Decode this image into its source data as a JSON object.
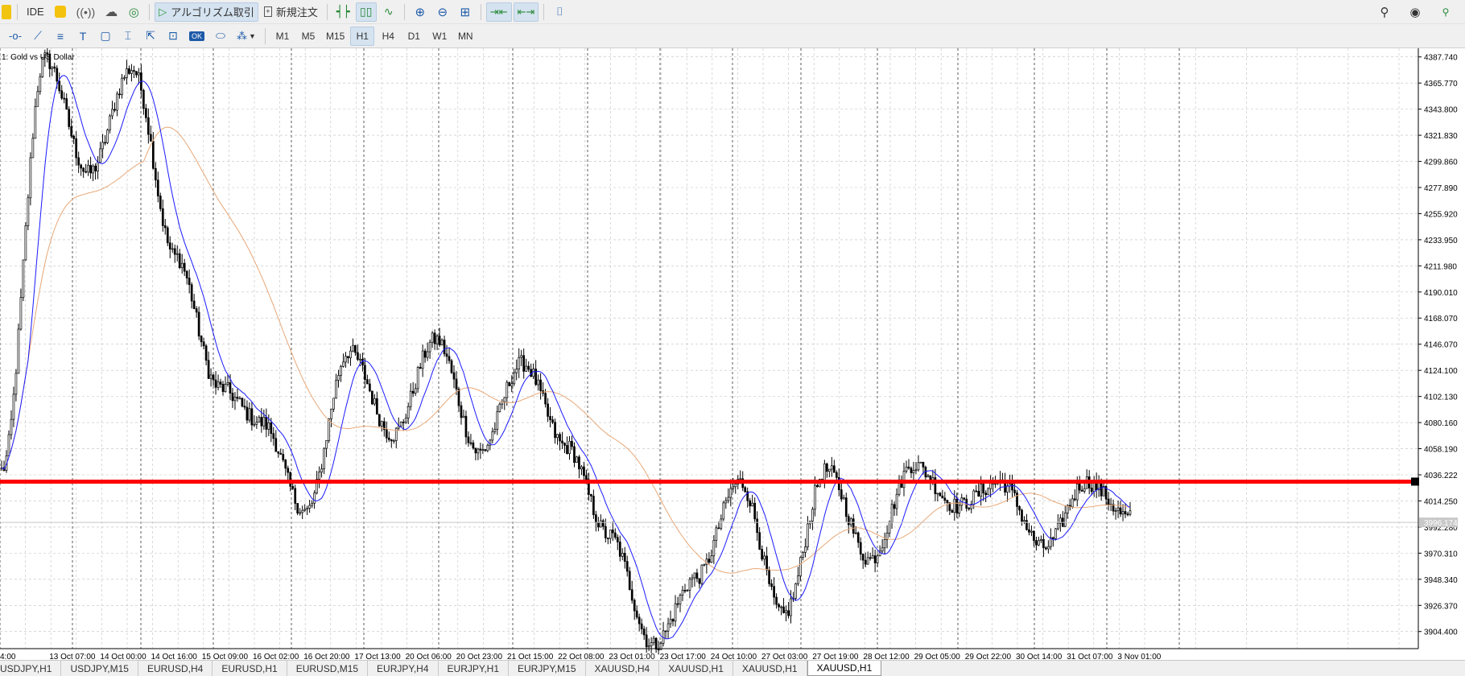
{
  "toolbar": {
    "ide_label": "IDE",
    "algo_label": "アルゴリズム取引",
    "neworder_label": "新規注文"
  },
  "timeframes": [
    "M1",
    "M5",
    "M15",
    "H1",
    "H4",
    "D1",
    "W1",
    "MN"
  ],
  "active_timeframe": "H1",
  "chart": {
    "title": "1: Gold vs US Dollar",
    "current_price_label": "3996.174",
    "colors": {
      "candle": "#000000",
      "ma_fast": "#1a1aff",
      "ma_slow": "#e8a878",
      "level_line": "#ff0000",
      "grid": "#c0c0c0"
    }
  },
  "chart_data": {
    "type": "candlestick",
    "symbol": "XAUUSD",
    "timeframe": "H1",
    "ylim": [
      3890,
      4395
    ],
    "y_ticks": [
      4387.74,
      4365.77,
      4343.8,
      4321.83,
      4299.86,
      4277.89,
      4255.92,
      4233.95,
      4211.98,
      4190.01,
      4168.07,
      4146.07,
      4124.1,
      4102.13,
      4080.16,
      4058.19,
      4036.222,
      4014.25,
      3992.28,
      3970.31,
      3948.34,
      3926.37,
      3904.4
    ],
    "x_ticks": [
      "4:00",
      "13 Oct 07:00",
      "14 Oct 00:00",
      "14 Oct 16:00",
      "15 Oct 09:00",
      "16 Oct 02:00",
      "16 Oct 20:00",
      "17 Oct 13:00",
      "20 Oct 06:00",
      "20 Oct 23:00",
      "21 Oct 15:00",
      "22 Oct 08:00",
      "23 Oct 01:00",
      "23 Oct 17:00",
      "24 Oct 10:00",
      "27 Oct 03:00",
      "27 Oct 19:00",
      "28 Oct 12:00",
      "29 Oct 05:00",
      "29 Oct 22:00",
      "30 Oct 14:00",
      "31 Oct 07:00",
      "3 Nov 01:00"
    ],
    "key_prices": [
      4040,
      4386,
      4290,
      4378,
      4220,
      4110,
      4080,
      4005,
      4140,
      4070,
      4150,
      4055,
      4130,
      4060,
      3985,
      3893,
      3950,
      4030,
      3918,
      4040,
      3965,
      4045,
      4010,
      4030,
      3975,
      4030,
      4000
    ],
    "level_line": 4030.5,
    "current_price": 3996.174
  },
  "tabs": [
    "USDJPY,H1",
    "USDJPY,M15",
    "EURUSD,H4",
    "EURUSD,H1",
    "EURUSD,M15",
    "EURJPY,H4",
    "EURJPY,H1",
    "EURJPY,M15",
    "XAUUSD,H4",
    "XAUUSD,H1",
    "XAUUSD,H1",
    "XAUUSD,H1"
  ],
  "active_tab_index": 11
}
